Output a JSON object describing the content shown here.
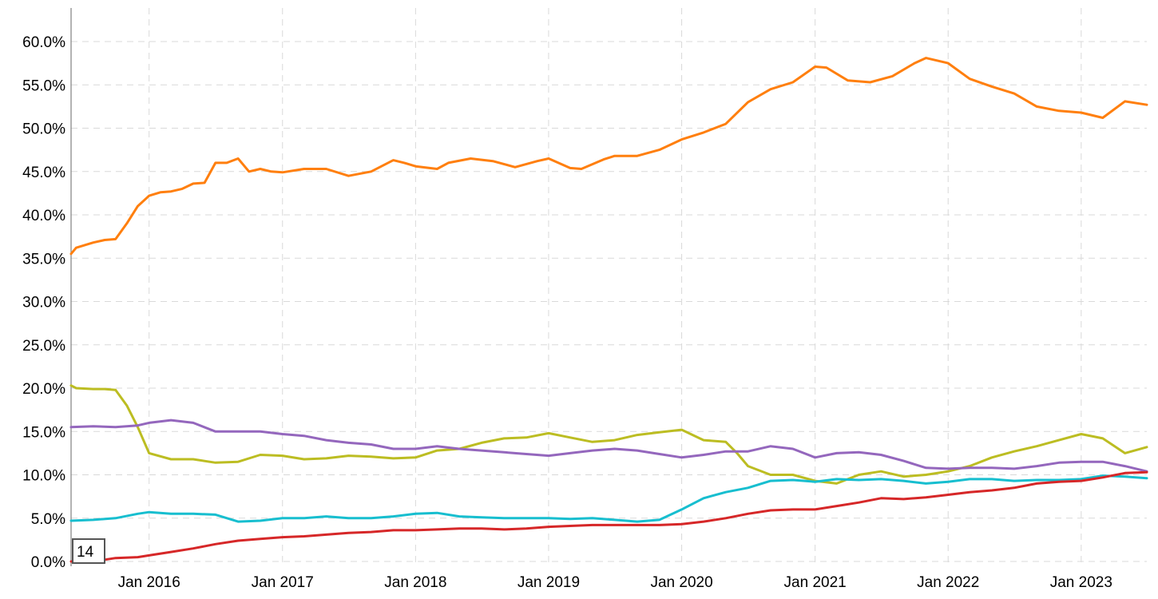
{
  "chart_data": {
    "type": "line",
    "title": "",
    "xlabel": "",
    "ylabel": "",
    "x_type": "date",
    "xlim": [
      "2015-06-01",
      "2023-06-30"
    ],
    "ylim": [
      0,
      0.6
    ],
    "y_format": "percent_1dp",
    "y_ticks": [
      0,
      0.05,
      0.1,
      0.15,
      0.2,
      0.25,
      0.3,
      0.35,
      0.4,
      0.45,
      0.5,
      0.55,
      0.6
    ],
    "y_tick_labels": [
      "0.0%",
      "5.0%",
      "10.0%",
      "15.0%",
      "20.0%",
      "25.0%",
      "30.0%",
      "35.0%",
      "40.0%",
      "45.0%",
      "50.0%",
      "55.0%",
      "60.0%"
    ],
    "x_ticks": [
      "2016-01-01",
      "2017-01-01",
      "2018-01-01",
      "2019-01-01",
      "2020-01-01",
      "2021-01-01",
      "2022-01-01",
      "2023-01-01"
    ],
    "x_tick_labels": [
      "Jan 2016",
      "Jan 2017",
      "Jan 2018",
      "Jan 2019",
      "Jan 2020",
      "Jan 2021",
      "Jan 2022",
      "Jan 2023"
    ],
    "grid": true,
    "legend": "none",
    "badge_text": "14",
    "series": [
      {
        "color": "#ff7f0e",
        "x": [
          "2015-06-01",
          "2015-06-15",
          "2015-08-01",
          "2015-09-01",
          "2015-10-01",
          "2015-11-01",
          "2015-12-01",
          "2016-01-01",
          "2016-02-01",
          "2016-03-01",
          "2016-04-01",
          "2016-05-01",
          "2016-06-01",
          "2016-07-01",
          "2016-08-01",
          "2016-09-01",
          "2016-10-01",
          "2016-11-01",
          "2016-12-01",
          "2017-01-01",
          "2017-03-01",
          "2017-05-01",
          "2017-07-01",
          "2017-09-01",
          "2017-11-01",
          "2017-12-01",
          "2018-01-01",
          "2018-03-01",
          "2018-04-01",
          "2018-06-01",
          "2018-08-01",
          "2018-10-01",
          "2018-12-01",
          "2019-01-01",
          "2019-03-01",
          "2019-04-01",
          "2019-06-01",
          "2019-07-01",
          "2019-09-01",
          "2019-11-01",
          "2020-01-01",
          "2020-03-01",
          "2020-05-01",
          "2020-07-01",
          "2020-09-01",
          "2020-11-01",
          "2021-01-01",
          "2021-02-01",
          "2021-04-01",
          "2021-06-01",
          "2021-08-01",
          "2021-10-01",
          "2021-11-01",
          "2022-01-01",
          "2022-03-01",
          "2022-05-01",
          "2022-07-01",
          "2022-09-01",
          "2022-11-01",
          "2023-01-01",
          "2023-03-01",
          "2023-05-01",
          "2023-06-30"
        ],
        "y": [
          0.355,
          0.362,
          0.368,
          0.371,
          0.372,
          0.39,
          0.41,
          0.422,
          0.426,
          0.427,
          0.43,
          0.436,
          0.437,
          0.46,
          0.46,
          0.465,
          0.45,
          0.453,
          0.45,
          0.449,
          0.453,
          0.453,
          0.445,
          0.45,
          0.463,
          0.46,
          0.456,
          0.453,
          0.46,
          0.465,
          0.462,
          0.455,
          0.462,
          0.465,
          0.454,
          0.453,
          0.464,
          0.468,
          0.468,
          0.475,
          0.487,
          0.495,
          0.505,
          0.53,
          0.545,
          0.553,
          0.571,
          0.57,
          0.555,
          0.553,
          0.56,
          0.575,
          0.581,
          0.575,
          0.557,
          0.548,
          0.54,
          0.525,
          0.52,
          0.518,
          0.512,
          0.531,
          0.527
        ]
      },
      {
        "color": "#bcbd22",
        "x": [
          "2015-06-01",
          "2015-06-15",
          "2015-08-01",
          "2015-09-01",
          "2015-10-01",
          "2015-11-01",
          "2015-12-01",
          "2016-01-01",
          "2016-03-01",
          "2016-05-01",
          "2016-07-01",
          "2016-09-01",
          "2016-11-01",
          "2017-01-01",
          "2017-03-01",
          "2017-05-01",
          "2017-07-01",
          "2017-09-01",
          "2017-11-01",
          "2018-01-01",
          "2018-03-01",
          "2018-05-01",
          "2018-07-01",
          "2018-09-01",
          "2018-11-01",
          "2019-01-01",
          "2019-03-01",
          "2019-05-01",
          "2019-07-01",
          "2019-09-01",
          "2019-11-01",
          "2020-01-01",
          "2020-03-01",
          "2020-05-01",
          "2020-06-01",
          "2020-07-01",
          "2020-09-01",
          "2020-11-01",
          "2021-01-01",
          "2021-03-01",
          "2021-05-01",
          "2021-07-01",
          "2021-09-01",
          "2021-11-01",
          "2022-01-01",
          "2022-03-01",
          "2022-05-01",
          "2022-07-01",
          "2022-09-01",
          "2022-11-01",
          "2023-01-01",
          "2023-03-01",
          "2023-05-01",
          "2023-06-30"
        ],
        "y": [
          0.203,
          0.2,
          0.199,
          0.199,
          0.198,
          0.18,
          0.155,
          0.125,
          0.118,
          0.118,
          0.114,
          0.115,
          0.123,
          0.122,
          0.118,
          0.119,
          0.122,
          0.121,
          0.119,
          0.12,
          0.128,
          0.13,
          0.137,
          0.142,
          0.143,
          0.148,
          0.143,
          0.138,
          0.14,
          0.146,
          0.149,
          0.152,
          0.14,
          0.138,
          0.125,
          0.11,
          0.1,
          0.1,
          0.093,
          0.09,
          0.1,
          0.104,
          0.098,
          0.1,
          0.104,
          0.11,
          0.12,
          0.127,
          0.133,
          0.14,
          0.147,
          0.142,
          0.125,
          0.132
        ]
      },
      {
        "color": "#9467bd",
        "x": [
          "2015-06-01",
          "2015-08-01",
          "2015-10-01",
          "2015-12-01",
          "2016-01-01",
          "2016-03-01",
          "2016-05-01",
          "2016-07-01",
          "2016-09-01",
          "2016-11-01",
          "2017-01-01",
          "2017-03-01",
          "2017-05-01",
          "2017-07-01",
          "2017-09-01",
          "2017-11-01",
          "2018-01-01",
          "2018-03-01",
          "2018-05-01",
          "2018-07-01",
          "2018-09-01",
          "2018-11-01",
          "2019-01-01",
          "2019-03-01",
          "2019-05-01",
          "2019-07-01",
          "2019-09-01",
          "2019-11-01",
          "2020-01-01",
          "2020-03-01",
          "2020-05-01",
          "2020-07-01",
          "2020-09-01",
          "2020-11-01",
          "2021-01-01",
          "2021-03-01",
          "2021-05-01",
          "2021-07-01",
          "2021-09-01",
          "2021-11-01",
          "2022-01-01",
          "2022-03-01",
          "2022-05-01",
          "2022-07-01",
          "2022-09-01",
          "2022-11-01",
          "2023-01-01",
          "2023-03-01",
          "2023-05-01",
          "2023-06-30"
        ],
        "y": [
          0.155,
          0.156,
          0.155,
          0.157,
          0.16,
          0.163,
          0.16,
          0.15,
          0.15,
          0.15,
          0.147,
          0.145,
          0.14,
          0.137,
          0.135,
          0.13,
          0.13,
          0.133,
          0.13,
          0.128,
          0.126,
          0.124,
          0.122,
          0.125,
          0.128,
          0.13,
          0.128,
          0.124,
          0.12,
          0.123,
          0.127,
          0.127,
          0.133,
          0.13,
          0.12,
          0.125,
          0.126,
          0.123,
          0.116,
          0.108,
          0.107,
          0.108,
          0.108,
          0.107,
          0.11,
          0.114,
          0.115,
          0.115,
          0.11,
          0.104
        ]
      },
      {
        "color": "#17becf",
        "x": [
          "2015-06-01",
          "2015-08-01",
          "2015-10-01",
          "2015-12-01",
          "2016-01-01",
          "2016-03-01",
          "2016-05-01",
          "2016-07-01",
          "2016-09-01",
          "2016-11-01",
          "2017-01-01",
          "2017-03-01",
          "2017-05-01",
          "2017-07-01",
          "2017-09-01",
          "2017-11-01",
          "2018-01-01",
          "2018-03-01",
          "2018-05-01",
          "2018-07-01",
          "2018-09-01",
          "2018-11-01",
          "2019-01-01",
          "2019-03-01",
          "2019-05-01",
          "2019-07-01",
          "2019-09-01",
          "2019-11-01",
          "2020-01-01",
          "2020-03-01",
          "2020-05-01",
          "2020-07-01",
          "2020-09-01",
          "2020-11-01",
          "2021-01-01",
          "2021-03-01",
          "2021-05-01",
          "2021-07-01",
          "2021-09-01",
          "2021-11-01",
          "2022-01-01",
          "2022-03-01",
          "2022-05-01",
          "2022-07-01",
          "2022-09-01",
          "2022-11-01",
          "2023-01-01",
          "2023-03-01",
          "2023-05-01",
          "2023-06-30"
        ],
        "y": [
          0.047,
          0.048,
          0.05,
          0.055,
          0.057,
          0.055,
          0.055,
          0.054,
          0.046,
          0.047,
          0.05,
          0.05,
          0.052,
          0.05,
          0.05,
          0.052,
          0.055,
          0.056,
          0.052,
          0.051,
          0.05,
          0.05,
          0.05,
          0.049,
          0.05,
          0.048,
          0.046,
          0.048,
          0.06,
          0.073,
          0.08,
          0.085,
          0.093,
          0.094,
          0.092,
          0.095,
          0.094,
          0.095,
          0.093,
          0.09,
          0.092,
          0.095,
          0.095,
          0.093,
          0.094,
          0.094,
          0.095,
          0.099,
          0.098,
          0.096
        ]
      },
      {
        "color": "#d62728",
        "x": [
          "2015-06-01",
          "2015-08-01",
          "2015-09-01",
          "2015-10-01",
          "2015-12-01",
          "2016-01-01",
          "2016-03-01",
          "2016-05-01",
          "2016-07-01",
          "2016-09-01",
          "2016-11-01",
          "2017-01-01",
          "2017-03-01",
          "2017-05-01",
          "2017-07-01",
          "2017-09-01",
          "2017-11-01",
          "2018-01-01",
          "2018-03-01",
          "2018-05-01",
          "2018-07-01",
          "2018-09-01",
          "2018-11-01",
          "2019-01-01",
          "2019-03-01",
          "2019-05-01",
          "2019-07-01",
          "2019-09-01",
          "2019-11-01",
          "2020-01-01",
          "2020-03-01",
          "2020-05-01",
          "2020-07-01",
          "2020-09-01",
          "2020-11-01",
          "2021-01-01",
          "2021-03-01",
          "2021-05-01",
          "2021-07-01",
          "2021-09-01",
          "2021-11-01",
          "2022-01-01",
          "2022-03-01",
          "2022-05-01",
          "2022-07-01",
          "2022-09-01",
          "2022-11-01",
          "2023-01-01",
          "2023-03-01",
          "2023-05-01",
          "2023-06-30"
        ],
        "y": [
          0.0,
          0.0,
          0.002,
          0.004,
          0.005,
          0.007,
          0.011,
          0.015,
          0.02,
          0.024,
          0.026,
          0.028,
          0.029,
          0.031,
          0.033,
          0.034,
          0.036,
          0.036,
          0.037,
          0.038,
          0.038,
          0.037,
          0.038,
          0.04,
          0.041,
          0.042,
          0.042,
          0.042,
          0.042,
          0.043,
          0.046,
          0.05,
          0.055,
          0.059,
          0.06,
          0.06,
          0.064,
          0.068,
          0.073,
          0.072,
          0.074,
          0.077,
          0.08,
          0.082,
          0.085,
          0.09,
          0.092,
          0.093,
          0.097,
          0.102,
          0.103
        ]
      }
    ]
  }
}
